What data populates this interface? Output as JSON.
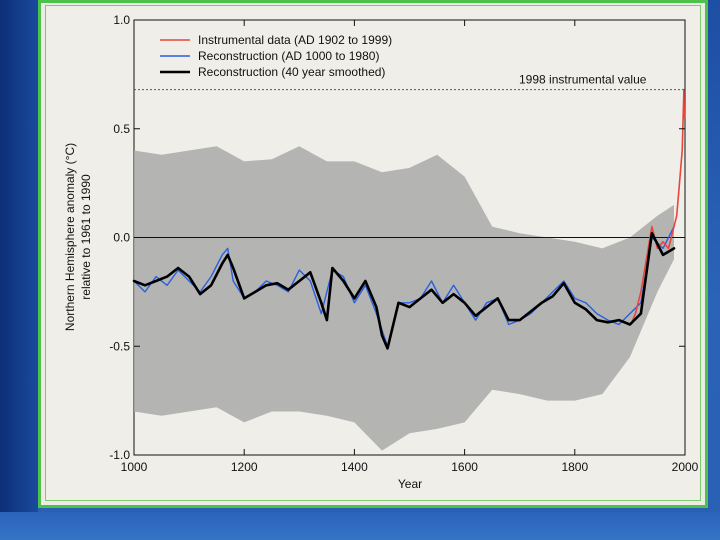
{
  "chart_data": {
    "type": "line",
    "xlabel": "Year",
    "ylabel": "Northern Hemisphere anomaly (°C)",
    "ylabel2": "relative to 1961 to 1990",
    "xlim": [
      1000,
      2000
    ],
    "ylim": [
      -1.0,
      1.0
    ],
    "x_ticks": [
      "1000",
      "1200",
      "1400",
      "1600",
      "1800",
      "2000"
    ],
    "x_tick_values": [
      1000,
      1200,
      1400,
      1600,
      1800,
      2000
    ],
    "y_ticks": [
      "1.0",
      "0.5",
      "0.0",
      "-0.5",
      "-1.0"
    ],
    "y_tick_values": [
      1.0,
      0.5,
      0.0,
      -0.5,
      -1.0
    ],
    "annotation": {
      "text": "1998 instrumental value",
      "value": 0.68
    },
    "legend_position": "top-left",
    "series": [
      {
        "name": "Instrumental data (AD 1902 to 1999)",
        "color": "#e8453c",
        "x": [
          1902,
          1910,
          1920,
          1930,
          1940,
          1950,
          1960,
          1970,
          1980,
          1985,
          1990,
          1995,
          1998,
          1999
        ],
        "values": [
          -0.4,
          -0.35,
          -0.25,
          -0.1,
          0.05,
          -0.05,
          -0.02,
          -0.05,
          0.05,
          0.1,
          0.25,
          0.4,
          0.68,
          0.55
        ]
      },
      {
        "name": "Reconstruction (AD 1000 to 1980)",
        "color": "#2a5fe0",
        "x": [
          1000,
          1020,
          1040,
          1060,
          1080,
          1100,
          1120,
          1140,
          1160,
          1170,
          1180,
          1200,
          1220,
          1240,
          1260,
          1280,
          1300,
          1320,
          1340,
          1360,
          1380,
          1400,
          1420,
          1440,
          1460,
          1480,
          1500,
          1520,
          1540,
          1560,
          1580,
          1600,
          1620,
          1640,
          1660,
          1680,
          1700,
          1720,
          1740,
          1760,
          1780,
          1800,
          1820,
          1840,
          1860,
          1880,
          1900,
          1920,
          1940,
          1960,
          1980
        ],
        "values": [
          -0.2,
          -0.25,
          -0.18,
          -0.22,
          -0.15,
          -0.2,
          -0.25,
          -0.18,
          -0.08,
          -0.05,
          -0.2,
          -0.28,
          -0.25,
          -0.2,
          -0.22,
          -0.25,
          -0.15,
          -0.2,
          -0.35,
          -0.15,
          -0.18,
          -0.3,
          -0.22,
          -0.35,
          -0.5,
          -0.3,
          -0.3,
          -0.28,
          -0.2,
          -0.3,
          -0.22,
          -0.3,
          -0.38,
          -0.3,
          -0.28,
          -0.4,
          -0.38,
          -0.35,
          -0.3,
          -0.25,
          -0.2,
          -0.28,
          -0.3,
          -0.35,
          -0.38,
          -0.4,
          -0.35,
          -0.3,
          0.0,
          -0.05,
          0.05
        ]
      },
      {
        "name": "Reconstruction (40 year smoothed)",
        "color": "#000000",
        "x": [
          1000,
          1020,
          1040,
          1060,
          1080,
          1100,
          1120,
          1140,
          1160,
          1170,
          1180,
          1200,
          1220,
          1240,
          1260,
          1280,
          1300,
          1320,
          1340,
          1350,
          1360,
          1380,
          1400,
          1420,
          1440,
          1450,
          1460,
          1480,
          1500,
          1520,
          1540,
          1560,
          1580,
          1600,
          1620,
          1640,
          1660,
          1680,
          1700,
          1720,
          1740,
          1760,
          1780,
          1800,
          1820,
          1840,
          1860,
          1880,
          1900,
          1920,
          1940,
          1960,
          1980
        ],
        "values": [
          -0.2,
          -0.22,
          -0.2,
          -0.18,
          -0.14,
          -0.18,
          -0.26,
          -0.22,
          -0.12,
          -0.08,
          -0.14,
          -0.28,
          -0.25,
          -0.22,
          -0.21,
          -0.24,
          -0.2,
          -0.16,
          -0.3,
          -0.38,
          -0.14,
          -0.2,
          -0.28,
          -0.2,
          -0.32,
          -0.45,
          -0.51,
          -0.3,
          -0.32,
          -0.28,
          -0.24,
          -0.3,
          -0.26,
          -0.3,
          -0.36,
          -0.32,
          -0.28,
          -0.38,
          -0.38,
          -0.34,
          -0.3,
          -0.27,
          -0.21,
          -0.3,
          -0.33,
          -0.38,
          -0.39,
          -0.38,
          -0.4,
          -0.35,
          0.02,
          -0.08,
          -0.05
        ]
      }
    ],
    "uncertainty_band": {
      "name": "",
      "color": "#a9a9a9",
      "x": [
        1000,
        1050,
        1100,
        1150,
        1200,
        1250,
        1300,
        1350,
        1400,
        1450,
        1500,
        1550,
        1600,
        1650,
        1700,
        1750,
        1800,
        1850,
        1900,
        1950,
        1980
      ],
      "upper": [
        0.4,
        0.38,
        0.4,
        0.42,
        0.35,
        0.36,
        0.42,
        0.35,
        0.35,
        0.3,
        0.32,
        0.38,
        0.28,
        0.05,
        0.02,
        0.0,
        -0.02,
        -0.05,
        0.0,
        0.1,
        0.15
      ],
      "lower": [
        -0.8,
        -0.82,
        -0.8,
        -0.78,
        -0.85,
        -0.8,
        -0.8,
        -0.82,
        -0.85,
        -0.98,
        -0.9,
        -0.88,
        -0.85,
        -0.7,
        -0.72,
        -0.75,
        -0.75,
        -0.72,
        -0.55,
        -0.25,
        -0.1
      ]
    }
  }
}
